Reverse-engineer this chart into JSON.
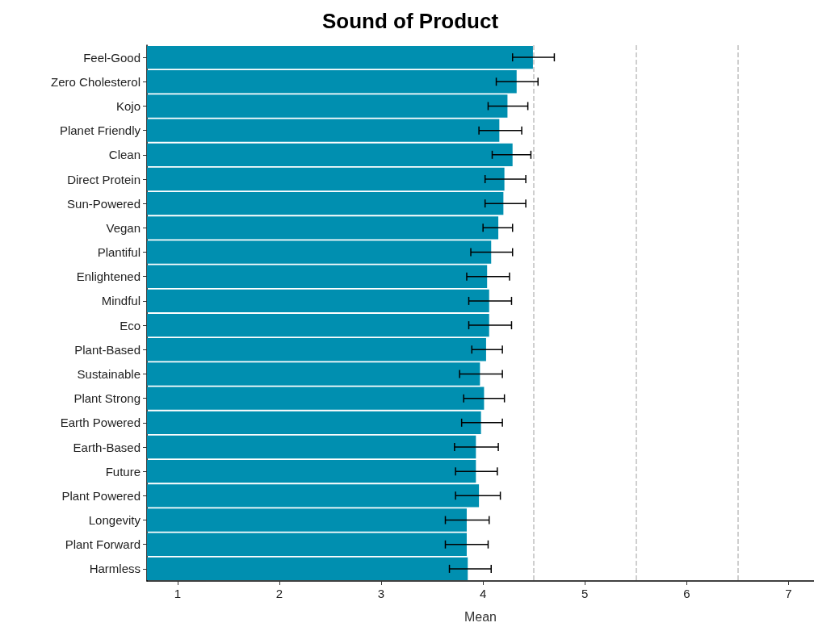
{
  "chart_data": {
    "type": "bar",
    "orientation": "horizontal",
    "title": "Sound of Product",
    "xlabel": "Mean",
    "categories": [
      "Feel-Good",
      "Zero Cholesterol",
      "Kojo",
      "Planet Friendly",
      "Clean",
      "Direct Protein",
      "Sun-Powered",
      "Vegan",
      "Plantiful",
      "Enlightened",
      "Mindful",
      "Eco",
      "Plant-Based",
      "Sustainable",
      "Plant Strong",
      "Earth Powered",
      "Earth-Based",
      "Future",
      "Plant Powered",
      "Longevity",
      "Plant Forward",
      "Harmless"
    ],
    "values": [
      4.49,
      4.33,
      4.24,
      4.16,
      4.29,
      4.21,
      4.2,
      4.15,
      4.08,
      4.04,
      4.06,
      4.06,
      4.03,
      3.97,
      4.01,
      3.98,
      3.93,
      3.93,
      3.96,
      3.84,
      3.84,
      3.85
    ],
    "errors": [
      [
        4.29,
        4.7
      ],
      [
        4.13,
        4.54
      ],
      [
        4.05,
        4.44
      ],
      [
        3.96,
        4.38
      ],
      [
        4.09,
        4.47
      ],
      [
        4.02,
        4.42
      ],
      [
        4.02,
        4.42
      ],
      [
        4.0,
        4.29
      ],
      [
        3.88,
        4.29
      ],
      [
        3.84,
        4.26
      ],
      [
        3.86,
        4.28
      ],
      [
        3.86,
        4.28
      ],
      [
        3.89,
        4.19
      ],
      [
        3.77,
        4.19
      ],
      [
        3.81,
        4.21
      ],
      [
        3.79,
        4.19
      ],
      [
        3.72,
        4.15
      ],
      [
        3.73,
        4.14
      ],
      [
        3.73,
        4.17
      ],
      [
        3.63,
        4.06
      ],
      [
        3.63,
        4.05
      ],
      [
        3.67,
        4.08
      ]
    ],
    "color": "#008fb0",
    "xlim": [
      0.7,
      7.25
    ],
    "xticks": [
      1,
      2,
      3,
      4,
      5,
      6,
      7
    ],
    "ref_lines": [
      {
        "axis": "x",
        "value": 4.5,
        "color": "#c0c0c0",
        "line_style": "dashed"
      },
      {
        "axis": "x",
        "value": 5.5,
        "color": "#c0c0c0",
        "line_style": "dashed"
      },
      {
        "axis": "x",
        "value": 6.5,
        "color": "#c0c0c0",
        "line_style": "dashed"
      }
    ]
  }
}
